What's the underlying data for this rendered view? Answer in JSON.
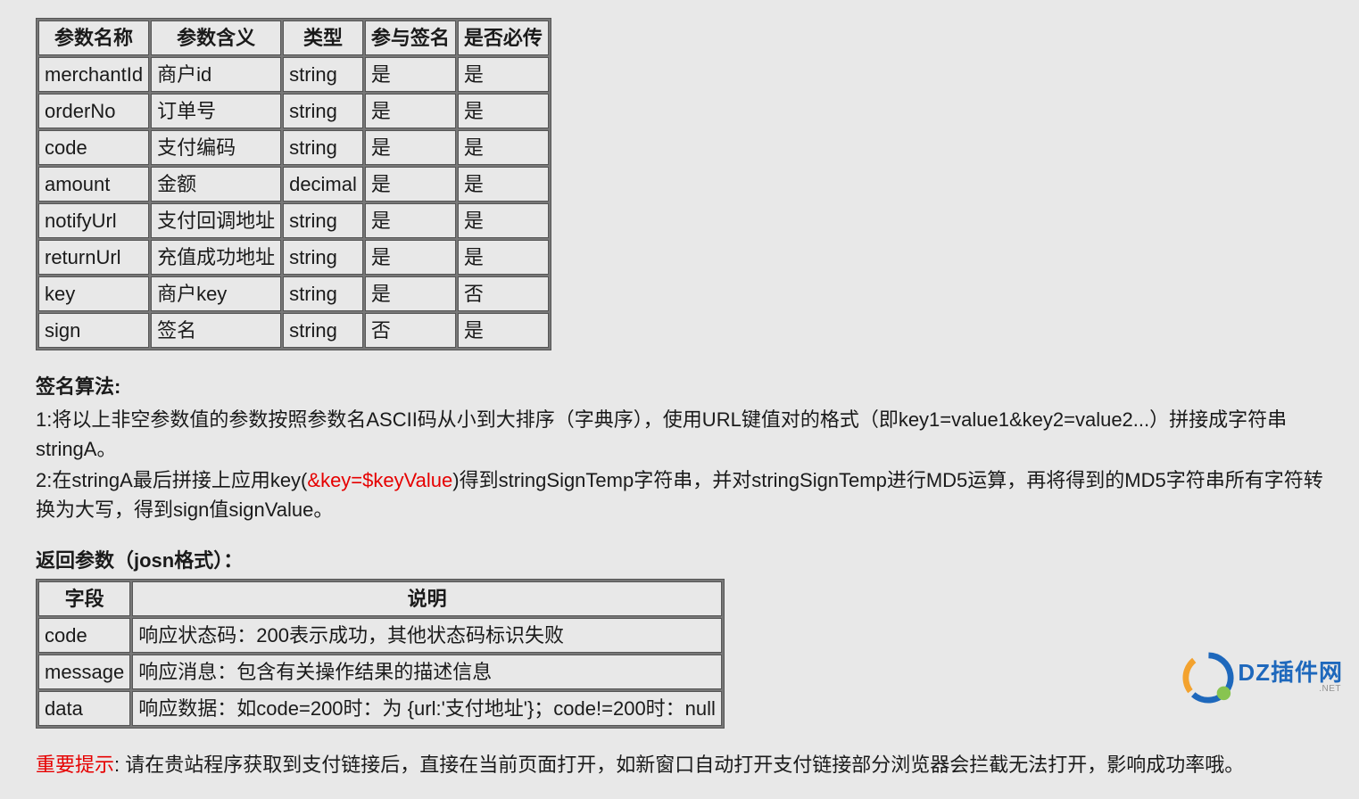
{
  "params_table": {
    "columns": [
      "参数名称",
      "参数含义",
      "类型",
      "参与签名",
      "是否必传"
    ],
    "rows": [
      [
        "merchantId",
        "商户id",
        "string",
        "是",
        "是"
      ],
      [
        "orderNo",
        "订单号",
        "string",
        "是",
        "是"
      ],
      [
        "code",
        "支付编码",
        "string",
        "是",
        "是"
      ],
      [
        "amount",
        "金额",
        "decimal",
        "是",
        "是"
      ],
      [
        "notifyUrl",
        "支付回调地址",
        "string",
        "是",
        "是"
      ],
      [
        "returnUrl",
        "充值成功地址",
        "string",
        "是",
        "是"
      ],
      [
        "key",
        "商户key",
        "string",
        "是",
        "否"
      ],
      [
        "sign",
        "签名",
        "string",
        "否",
        "是"
      ]
    ]
  },
  "sign_title": "签名算法:",
  "sign_line1": "1:将以上非空参数值的参数按照参数名ASCII码从小到大排序（字典序），使用URL键值对的格式（即key1=value1&key2=value2...）拼接成字符串stringA。",
  "sign_line2_a": "2:在stringA最后拼接上应用key(",
  "sign_line2_red": "&key=$keyValue",
  "sign_line2_b": ")得到stringSignTemp字符串，并对stringSignTemp进行MD5运算，再将得到的MD5字符串所有字符转换为大写，得到sign值signValue。",
  "response_title": "返回参数（josn格式）：",
  "response_table": {
    "columns": [
      "字段",
      "说明"
    ],
    "rows": [
      [
        "code",
        "响应状态码：200表示成功，其他状态码标识失败"
      ],
      [
        "message",
        "响应消息：包含有关操作结果的描述信息"
      ],
      [
        "data",
        "响应数据：如code=200时：为 {url:'支付地址'}；code!=200时：null"
      ]
    ]
  },
  "notice_red": "重要提示",
  "notice_text": ": 请在贵站程序获取到支付链接后，直接在当前页面打开，如新窗口自动打开支付链接部分浏览器会拦截无法打开，影响成功率哦。",
  "watermark": {
    "text_big": "DZ插件网",
    "text_small": ".NET",
    "colors": {
      "blue": "#0d5db8",
      "orange": "#f39c1e",
      "green": "#7fc143"
    }
  }
}
